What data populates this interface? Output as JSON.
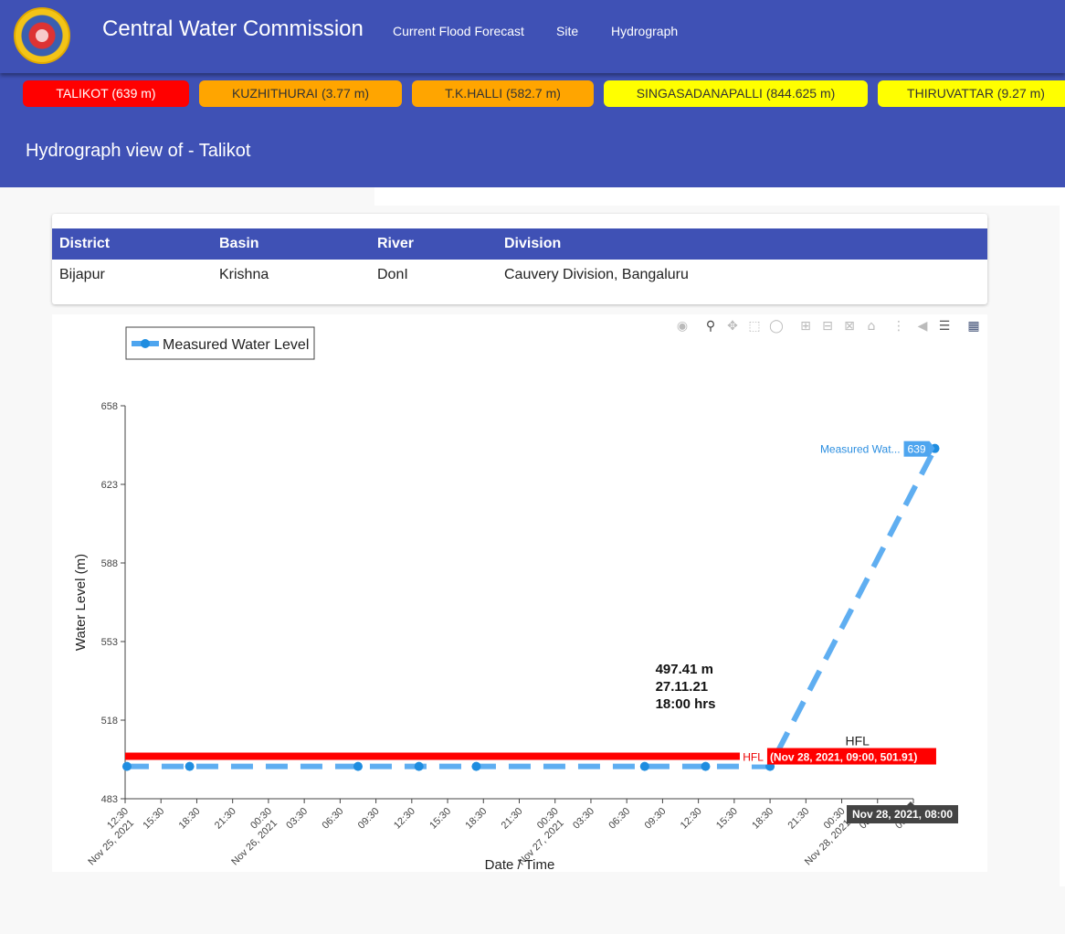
{
  "header": {
    "title": "Central Water Commission",
    "nav": [
      "Current Flood Forecast",
      "Site",
      "Hydrograph"
    ]
  },
  "ticker": [
    {
      "label": "TALIKOT (639 m)",
      "color": "#ff0000",
      "text_color": "#ffffff"
    },
    {
      "label": "KUZHITHURAI (3.77 m)",
      "color": "#ffa500",
      "text_color": "#333333"
    },
    {
      "label": "T.K.HALLI (582.7 m)",
      "color": "#ffa500",
      "text_color": "#333333"
    },
    {
      "label": "SINGASADANAPALLI (844.625 m)",
      "color": "#ffff00",
      "text_color": "#333333"
    },
    {
      "label": "THIRUVATTAR (9.27 m)",
      "color": "#ffff00",
      "text_color": "#333333"
    }
  ],
  "page_title": "Hydrograph view of - Talikot",
  "site_table": {
    "headers": [
      "District",
      "Basin",
      "River",
      "Division"
    ],
    "row": [
      "Bijapur",
      "Krishna",
      "DonI",
      "Cauvery Division, Bangaluru"
    ]
  },
  "modebar_icons": [
    "camera-icon",
    "zoom-icon",
    "pan-icon",
    "box-select-icon",
    "lasso-icon",
    "zoom-in-icon",
    "zoom-out-icon",
    "autoscale-icon",
    "home-icon",
    "spike-lines-icon",
    "hover-closest-icon",
    "hover-compare-icon",
    "plotly-logo-icon"
  ],
  "chart_data": {
    "type": "line",
    "xlabel": "Date / Time",
    "ylabel": "Water Level (m)",
    "ylim": [
      483,
      658
    ],
    "yticks": [
      483,
      518,
      553,
      588,
      623,
      658
    ],
    "xticks": [
      "12:30",
      "15:30",
      "18:30",
      "21:30",
      "00:30",
      "03:30",
      "06:30",
      "09:30",
      "12:30",
      "15:30",
      "18:30",
      "21:30",
      "00:30",
      "03:30",
      "06:30",
      "09:30",
      "12:30",
      "15:30",
      "18:30",
      "21:30",
      "00:30",
      "03:30",
      "06:30"
    ],
    "date_labels": [
      {
        "label": "Nov 25, 2021",
        "tick_index": 0
      },
      {
        "label": "Nov 26, 2021",
        "tick_index": 4
      },
      {
        "label": "Nov 27, 2021",
        "tick_index": 12
      },
      {
        "label": "Nov 28, 2021",
        "tick_index": 20
      }
    ],
    "legend": {
      "position": "top-left",
      "entries": [
        "Measured Water Level"
      ]
    },
    "series": [
      {
        "name": "Measured Water Level",
        "color": "#4ea5ef",
        "x": [
          0.05,
          1.8,
          6.5,
          8.2,
          9.8,
          14.5,
          16.2,
          18.0,
          22.6
        ],
        "y": [
          497.4,
          497.4,
          497.4,
          497.4,
          497.4,
          497.4,
          497.4,
          497.41,
          639
        ]
      }
    ],
    "hfl": {
      "label": "HFL",
      "value": 501.91,
      "color": "#ff0000",
      "hover_label": "(Nov 28, 2021, 09:00, 501.91)"
    },
    "annotation": {
      "lines": [
        "497.41 m",
        "27.11.21",
        "18:00 hrs"
      ]
    },
    "hover_series_label": {
      "name": "Measured Wat...",
      "value": "639"
    },
    "hover_x_label": "Nov 28, 2021, 08:00"
  }
}
